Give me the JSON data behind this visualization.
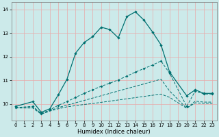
{
  "xlabel": "Humidex (Indice chaleur)",
  "xlim": [
    -0.5,
    23.5
  ],
  "ylim": [
    9.3,
    14.3
  ],
  "yticks": [
    10,
    11,
    12,
    13,
    14
  ],
  "xticks": [
    0,
    1,
    2,
    3,
    4,
    5,
    6,
    7,
    8,
    9,
    10,
    11,
    12,
    13,
    14,
    15,
    16,
    17,
    18,
    19,
    20,
    21,
    22,
    23
  ],
  "background_color": "#cceaea",
  "grid_color": "#e8aaaa",
  "line_color": "#007070",
  "line1_x": [
    0,
    2,
    3,
    4,
    5,
    6,
    7,
    8,
    9,
    10,
    11,
    12,
    13,
    14,
    15,
    16,
    17,
    18,
    20,
    21,
    22,
    23
  ],
  "line1_y": [
    9.9,
    10.1,
    9.65,
    9.8,
    10.4,
    11.05,
    12.15,
    12.6,
    12.85,
    13.25,
    13.15,
    12.8,
    13.7,
    13.9,
    13.55,
    13.05,
    12.5,
    11.35,
    10.35,
    10.6,
    10.45,
    10.45
  ],
  "line2_x": [
    0,
    2,
    3,
    4,
    5,
    6,
    7,
    8,
    9,
    10,
    11,
    12,
    13,
    14,
    15,
    16,
    17,
    18,
    20,
    21,
    22,
    23
  ],
  "line2_y": [
    9.85,
    9.9,
    9.6,
    9.75,
    9.95,
    10.1,
    10.28,
    10.45,
    10.6,
    10.75,
    10.88,
    11.02,
    11.18,
    11.35,
    11.5,
    11.65,
    11.82,
    11.3,
    9.9,
    10.55,
    10.42,
    10.42
  ],
  "line3_x": [
    0,
    2,
    3,
    4,
    5,
    6,
    7,
    8,
    9,
    10,
    11,
    12,
    13,
    14,
    15,
    16,
    17,
    18,
    20,
    21,
    22,
    23
  ],
  "line3_y": [
    9.85,
    9.85,
    9.58,
    9.72,
    9.85,
    9.95,
    10.05,
    10.15,
    10.25,
    10.35,
    10.45,
    10.55,
    10.65,
    10.75,
    10.85,
    10.95,
    11.05,
    10.55,
    9.82,
    10.12,
    10.08,
    10.08
  ],
  "line4_x": [
    0,
    2,
    3,
    4,
    5,
    6,
    7,
    8,
    9,
    10,
    11,
    12,
    13,
    14,
    15,
    16,
    17,
    18,
    20,
    21,
    22,
    23
  ],
  "line4_y": [
    9.83,
    9.83,
    9.57,
    9.7,
    9.8,
    9.88,
    9.93,
    9.98,
    10.02,
    10.07,
    10.12,
    10.17,
    10.22,
    10.27,
    10.32,
    10.37,
    10.42,
    10.28,
    9.82,
    10.05,
    10.03,
    10.03
  ]
}
